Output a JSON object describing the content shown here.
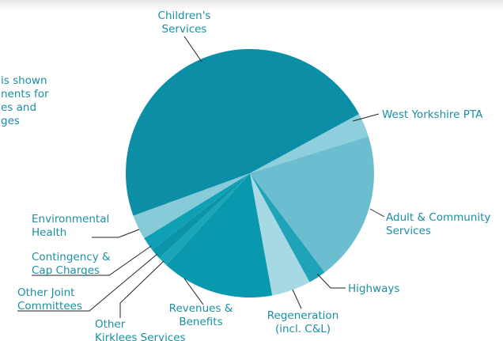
{
  "chart_data": {
    "type": "pie",
    "annotation_lines": [
      "is shown",
      "nents for",
      "es and",
      "ges"
    ],
    "categories": [
      "Children's\nServices",
      "West Yorkshire PTA",
      "Adult & Community\nServices",
      "Highways",
      "Regeneration\n(incl. C&L)",
      "Revenues &\nBenefits",
      "Other\nKirklees Services",
      "Other Joint\nCommittees",
      "Contingency &\nCap Charges",
      "Environmental\nHealth"
    ],
    "values": [
      47.6,
      3.1,
      19.5,
      2.3,
      5.1,
      14.6,
      1.3,
      1.4,
      1.8,
      3.2
    ],
    "colors": [
      "#0c8ea7",
      "#8dcfdc",
      "#6cbdd0",
      "#1ea3b8",
      "#a6d9e4",
      "#0a98ae",
      "#1aa5b9",
      "#0b93aa",
      "#10a0b6",
      "#87cbd9"
    ],
    "label_color": "#1a8fa4"
  }
}
